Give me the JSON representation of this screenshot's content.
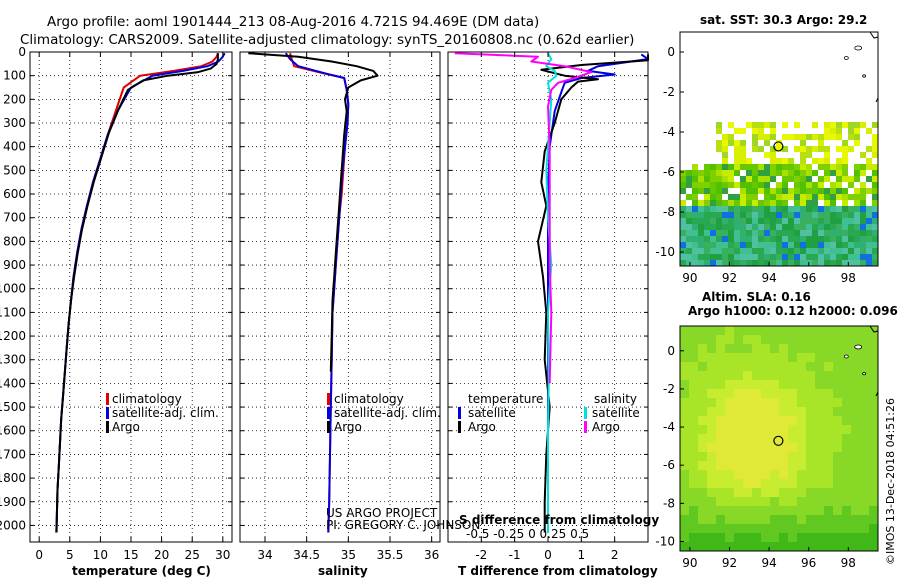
{
  "title_line1": "Argo profile: aoml 1901444_213 08-Aug-2016 4.721S 94.469E (DM data)",
  "title_line2": "Climatology: CARS2009. Satellite-adjusted climatology: synTS_20160808.nc (0.62d earlier)",
  "colors": {
    "climatology": "#e00000",
    "satellite": "#0000e0",
    "argo": "#000000",
    "sal_sat": "#00e0e0",
    "sal_diff": "#ff00ff"
  },
  "chart_data": [
    {
      "type": "line",
      "title": "",
      "xlabel": "temperature (deg C)",
      "ylabel": "",
      "xlim": [
        -1.5,
        31.5
      ],
      "ylim": [
        2070,
        0
      ],
      "xticks": [
        0,
        5,
        10,
        15,
        20,
        25,
        30
      ],
      "yticks": [
        0,
        100,
        200,
        300,
        400,
        500,
        600,
        700,
        800,
        900,
        1000,
        1100,
        1200,
        1300,
        1400,
        1500,
        1600,
        1700,
        1800,
        1900,
        2000
      ],
      "legend": [
        "climatology",
        "satellite-adj. clim.",
        "Argo"
      ],
      "series": [
        {
          "name": "climatology",
          "color": "#e00000",
          "points": [
            [
              29.2,
              5
            ],
            [
              29.0,
              20
            ],
            [
              28.3,
              40
            ],
            [
              26.5,
              60
            ],
            [
              22,
              80
            ],
            [
              16.5,
              100
            ],
            [
              13.8,
              150
            ],
            [
              12.5,
              250
            ],
            [
              11.2,
              350
            ],
            [
              10,
              450
            ],
            [
              8.8,
              550
            ],
            [
              7.8,
              650
            ],
            [
              6.9,
              750
            ],
            [
              6.2,
              850
            ],
            [
              5.6,
              950
            ],
            [
              5.2,
              1050
            ],
            [
              4.8,
              1150
            ],
            [
              4.5,
              1250
            ],
            [
              4.2,
              1350
            ],
            [
              3.9,
              1450
            ],
            [
              3.6,
              1550
            ],
            [
              3.4,
              1650
            ],
            [
              3.2,
              1750
            ],
            [
              3.0,
              1850
            ],
            [
              2.9,
              1950
            ],
            [
              2.8,
              2030
            ]
          ]
        },
        {
          "name": "satellite-adj. clim.",
          "color": "#0000e0",
          "points": [
            [
              30.3,
              5
            ],
            [
              30.0,
              20
            ],
            [
              29.3,
              40
            ],
            [
              27.5,
              60
            ],
            [
              23.5,
              80
            ],
            [
              18.5,
              100
            ],
            [
              15,
              150
            ],
            [
              12.8,
              250
            ],
            [
              11.2,
              350
            ],
            [
              10,
              450
            ],
            [
              8.8,
              550
            ],
            [
              7.8,
              650
            ],
            [
              6.9,
              750
            ],
            [
              6.2,
              850
            ],
            [
              5.6,
              950
            ],
            [
              5.2,
              1050
            ],
            [
              4.8,
              1150
            ],
            [
              4.5,
              1250
            ],
            [
              4.2,
              1350
            ],
            [
              3.9,
              1450
            ],
            [
              3.6,
              1550
            ],
            [
              3.4,
              1650
            ],
            [
              3.2,
              1750
            ],
            [
              3.0,
              1850
            ],
            [
              2.9,
              1950
            ],
            [
              2.8,
              2030
            ]
          ]
        },
        {
          "name": "Argo",
          "color": "#000000",
          "points": [
            [
              29.2,
              5
            ],
            [
              29.2,
              30
            ],
            [
              29.0,
              50
            ],
            [
              28,
              70
            ],
            [
              26,
              85
            ],
            [
              21,
              100
            ],
            [
              17,
              120
            ],
            [
              14.5,
              160
            ],
            [
              13,
              240
            ],
            [
              11.4,
              340
            ],
            [
              10.1,
              450
            ],
            [
              8.9,
              550
            ],
            [
              7.9,
              650
            ],
            [
              7,
              750
            ],
            [
              6.3,
              850
            ],
            [
              5.7,
              950
            ],
            [
              5.2,
              1050
            ],
            [
              4.8,
              1150
            ],
            [
              4.5,
              1250
            ],
            [
              4.2,
              1350
            ],
            [
              3.9,
              1450
            ],
            [
              3.6,
              1550
            ],
            [
              3.4,
              1650
            ],
            [
              3.2,
              1750
            ],
            [
              3.0,
              1850
            ],
            [
              2.9,
              1950
            ],
            [
              2.85,
              2030
            ]
          ]
        }
      ]
    },
    {
      "type": "line",
      "xlabel": "salinity",
      "xlim": [
        33.7,
        36.1
      ],
      "ylim": [
        2070,
        0
      ],
      "xticks": [
        34,
        34.5,
        35,
        35.5,
        36
      ],
      "legend": [
        "climatology",
        "satellite-adj. clim.",
        "Argo"
      ],
      "series": [
        {
          "name": "climatology",
          "color": "#e00000",
          "points": [
            [
              34.3,
              5
            ],
            [
              34.32,
              30
            ],
            [
              34.35,
              60
            ],
            [
              34.7,
              90
            ],
            [
              34.95,
              110
            ],
            [
              34.98,
              160
            ],
            [
              35.0,
              220
            ],
            [
              34.99,
              300
            ],
            [
              34.96,
              400
            ],
            [
              34.94,
              500
            ],
            [
              34.92,
              600
            ],
            [
              34.89,
              700
            ],
            [
              34.87,
              800
            ],
            [
              34.85,
              900
            ],
            [
              34.83,
              1000
            ],
            [
              34.81,
              1100
            ],
            [
              34.8,
              1300
            ],
            [
              34.79,
              1500
            ],
            [
              34.78,
              1700
            ],
            [
              34.77,
              1900
            ],
            [
              34.76,
              2030
            ]
          ]
        },
        {
          "name": "satellite-adj. clim.",
          "color": "#0000e0",
          "points": [
            [
              34.25,
              5
            ],
            [
              34.3,
              30
            ],
            [
              34.4,
              60
            ],
            [
              34.72,
              90
            ],
            [
              34.95,
              110
            ],
            [
              34.98,
              160
            ],
            [
              35.0,
              220
            ],
            [
              34.99,
              300
            ],
            [
              34.96,
              400
            ],
            [
              34.93,
              500
            ],
            [
              34.91,
              600
            ],
            [
              34.89,
              700
            ],
            [
              34.87,
              800
            ],
            [
              34.85,
              900
            ],
            [
              34.83,
              1000
            ],
            [
              34.81,
              1100
            ],
            [
              34.8,
              1300
            ],
            [
              34.79,
              1500
            ],
            [
              34.78,
              1700
            ],
            [
              34.77,
              1900
            ],
            [
              34.76,
              2030
            ]
          ]
        },
        {
          "name": "Argo",
          "color": "#000000",
          "points": [
            [
              33.8,
              5
            ],
            [
              34.4,
              20
            ],
            [
              34.8,
              40
            ],
            [
              35.1,
              60
            ],
            [
              35.3,
              80
            ],
            [
              35.35,
              100
            ],
            [
              35.15,
              120
            ],
            [
              35.0,
              150
            ],
            [
              34.96,
              200
            ],
            [
              34.98,
              250
            ],
            [
              34.95,
              350
            ],
            [
              34.93,
              450
            ],
            [
              34.91,
              550
            ],
            [
              34.89,
              650
            ],
            [
              34.87,
              750
            ],
            [
              34.85,
              850
            ],
            [
              34.83,
              950
            ],
            [
              34.81,
              1050
            ],
            [
              34.8,
              1200
            ],
            [
              34.79,
              1350
            ]
          ]
        }
      ]
    },
    {
      "type": "line",
      "xlabel": "T difference from climatology",
      "top_xlabel": "S difference from climatology",
      "xlim": [
        -3,
        3
      ],
      "ylim": [
        2070,
        0
      ],
      "xticks": [
        -2,
        -1,
        0,
        1,
        2
      ],
      "top_xticks": [
        -0.5,
        -0.25,
        0,
        0.25,
        0.5
      ],
      "top_ticks_text": "-0.5  -0.25   0   0.25  0.5",
      "legend": [
        "satellite",
        "Argo",
        "satellite",
        "Argo"
      ],
      "legend_headers": [
        "temperature",
        "salinity"
      ],
      "series": [
        {
          "name": "T satellite",
          "color": "#0000e0",
          "points": [
            [
              2.8,
              10
            ],
            [
              3.0,
              30
            ],
            [
              1.5,
              60
            ],
            [
              1.2,
              80
            ],
            [
              2.0,
              95
            ],
            [
              1.0,
              110
            ],
            [
              0.5,
              130
            ],
            [
              0.4,
              170
            ],
            [
              0.2,
              250
            ],
            [
              0.05,
              400
            ],
            [
              0,
              600
            ],
            [
              0,
              900
            ],
            [
              0,
              1200
            ],
            [
              0,
              1500
            ],
            [
              0,
              1800
            ],
            [
              0,
              2030
            ]
          ]
        },
        {
          "name": "T Argo",
          "color": "#000000",
          "points": [
            [
              3.0,
              10
            ],
            [
              3.0,
              35
            ],
            [
              1.0,
              55
            ],
            [
              -0.2,
              75
            ],
            [
              0.5,
              100
            ],
            [
              1.5,
              115
            ],
            [
              0.9,
              125
            ],
            [
              0.7,
              150
            ],
            [
              0.4,
              200
            ],
            [
              0.2,
              300
            ],
            [
              -0.1,
              420
            ],
            [
              -0.2,
              550
            ],
            [
              -0.05,
              650
            ],
            [
              -0.3,
              800
            ],
            [
              -0.15,
              950
            ],
            [
              -0.05,
              1100
            ],
            [
              -0.1,
              1300
            ],
            [
              0.05,
              1500
            ],
            [
              -0.05,
              1700
            ],
            [
              -0.1,
              1900
            ],
            [
              -0.1,
              2030
            ]
          ]
        },
        {
          "name": "S satellite",
          "color": "#00e0e0",
          "points": [
            [
              0,
              5
            ],
            [
              0.1,
              30
            ],
            [
              -0.05,
              60
            ],
            [
              0.2,
              80
            ],
            [
              0.25,
              100
            ],
            [
              0,
              130
            ],
            [
              0.1,
              200
            ],
            [
              0.05,
              300
            ],
            [
              -0.05,
              500
            ],
            [
              0,
              700
            ],
            [
              0.1,
              900
            ],
            [
              0,
              1100
            ],
            [
              0.02,
              1400
            ],
            [
              0,
              1600
            ],
            [
              0,
              2030
            ]
          ]
        },
        {
          "name": "S Argo",
          "color": "#ff00ff",
          "points": [
            [
              -2.8,
              5
            ],
            [
              -0.3,
              20
            ],
            [
              -0.5,
              40
            ],
            [
              0.5,
              60
            ],
            [
              1.3,
              85
            ],
            [
              0.8,
              110
            ],
            [
              0.3,
              130
            ],
            [
              0.1,
              160
            ],
            [
              0,
              230
            ],
            [
              0.05,
              400
            ],
            [
              0.05,
              600
            ],
            [
              0.05,
              900
            ],
            [
              0.1,
              1100
            ],
            [
              0.05,
              1400
            ]
          ]
        }
      ]
    },
    {
      "type": "heatmap",
      "title": "sat. SST: 30.3 Argo: 29.2",
      "xticks": [
        90,
        92,
        94,
        96,
        98
      ],
      "yticks": [
        0,
        -2,
        -4,
        -6,
        -8,
        -10
      ],
      "xlim": [
        89.5,
        99.5
      ],
      "ylim": [
        -10.7,
        1
      ],
      "argo_position": [
        94.469,
        -4.721
      ]
    },
    {
      "type": "heatmap",
      "title": "Altim. SLA: 0.16",
      "subtitle": "Argo h1000: 0.12 h2000: 0.096",
      "xticks": [
        90,
        92,
        94,
        96,
        98
      ],
      "yticks": [
        0,
        -2,
        -4,
        -6,
        -8,
        -10
      ],
      "xlim": [
        89.5,
        99.5
      ],
      "ylim": [
        -10.5,
        1.3
      ],
      "argo_position": [
        94.469,
        -4.721
      ]
    }
  ],
  "footer_project": "US ARGO PROJECT",
  "footer_pi": "PI: GREGORY C. JOHNSON",
  "watermark": "©IMOS 13-Dec-2018 04:51:26"
}
